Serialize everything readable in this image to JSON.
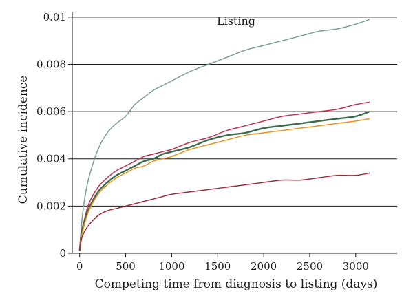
{
  "chart_data": {
    "type": "line",
    "title": "Listing",
    "xlabel": "Competing time from diagnosis to listing (days)",
    "ylabel": "Cumulative incidence",
    "xlim": [
      -80,
      3450
    ],
    "ylim": [
      0,
      0.0102
    ],
    "x_ticks": [
      0,
      500,
      1000,
      1500,
      2000,
      2500,
      3000
    ],
    "x_tick_labels": [
      "0",
      "500",
      "1000",
      "1500",
      "2000",
      "2500",
      "3000"
    ],
    "y_ticks": [
      0,
      0.002,
      0.004,
      0.006,
      0.008,
      0.01
    ],
    "y_tick_labels": [
      "0",
      "0.002",
      "0.004",
      "0.006",
      "0.008",
      "0.01"
    ],
    "grid": "horizontal",
    "x": [
      0,
      20,
      50,
      100,
      200,
      300,
      400,
      500,
      600,
      700,
      800,
      900,
      1000,
      1200,
      1400,
      1600,
      1800,
      2000,
      2200,
      2400,
      2600,
      2800,
      3000,
      3150
    ],
    "series": [
      {
        "color": "#7a9e8c",
        "values": [
          0.0001,
          0.0012,
          0.0022,
          0.0032,
          0.0044,
          0.0051,
          0.0055,
          0.0058,
          0.0063,
          0.0066,
          0.0069,
          0.0071,
          0.0073,
          0.0077,
          0.008,
          0.0083,
          0.0086,
          0.0088,
          0.009,
          0.0092,
          0.0094,
          0.0095,
          0.0097,
          0.0099
        ]
      },
      {
        "color": "#c0304e",
        "values": [
          0.0001,
          0.0009,
          0.0014,
          0.0021,
          0.0028,
          0.0032,
          0.0035,
          0.0037,
          0.0039,
          0.0041,
          0.0042,
          0.0043,
          0.0044,
          0.0047,
          0.0049,
          0.0052,
          0.0054,
          0.0056,
          0.0058,
          0.0059,
          0.006,
          0.0061,
          0.0063,
          0.0064
        ]
      },
      {
        "color": "#3b6b4c",
        "values": [
          0.0001,
          0.0008,
          0.0013,
          0.0019,
          0.0026,
          0.003,
          0.0033,
          0.0035,
          0.0037,
          0.0039,
          0.004,
          0.0042,
          0.0043,
          0.0045,
          0.0048,
          0.005,
          0.0051,
          0.0053,
          0.0054,
          0.0055,
          0.0056,
          0.0057,
          0.0058,
          0.006
        ]
      },
      {
        "color": "#e6921e",
        "values": [
          0.0001,
          0.0007,
          0.0012,
          0.0018,
          0.0025,
          0.0029,
          0.0032,
          0.0034,
          0.0036,
          0.0037,
          0.0039,
          0.004,
          0.0041,
          0.0044,
          0.0046,
          0.0048,
          0.005,
          0.0051,
          0.0052,
          0.0053,
          0.0054,
          0.0055,
          0.0056,
          0.0057
        ]
      },
      {
        "color": "#9b2d3a",
        "values": [
          0.0001,
          0.0006,
          0.0009,
          0.0012,
          0.0016,
          0.0018,
          0.0019,
          0.002,
          0.0021,
          0.0022,
          0.0023,
          0.0024,
          0.0025,
          0.0026,
          0.0027,
          0.0028,
          0.0029,
          0.003,
          0.0031,
          0.0031,
          0.0032,
          0.0033,
          0.0033,
          0.0034
        ]
      }
    ]
  }
}
